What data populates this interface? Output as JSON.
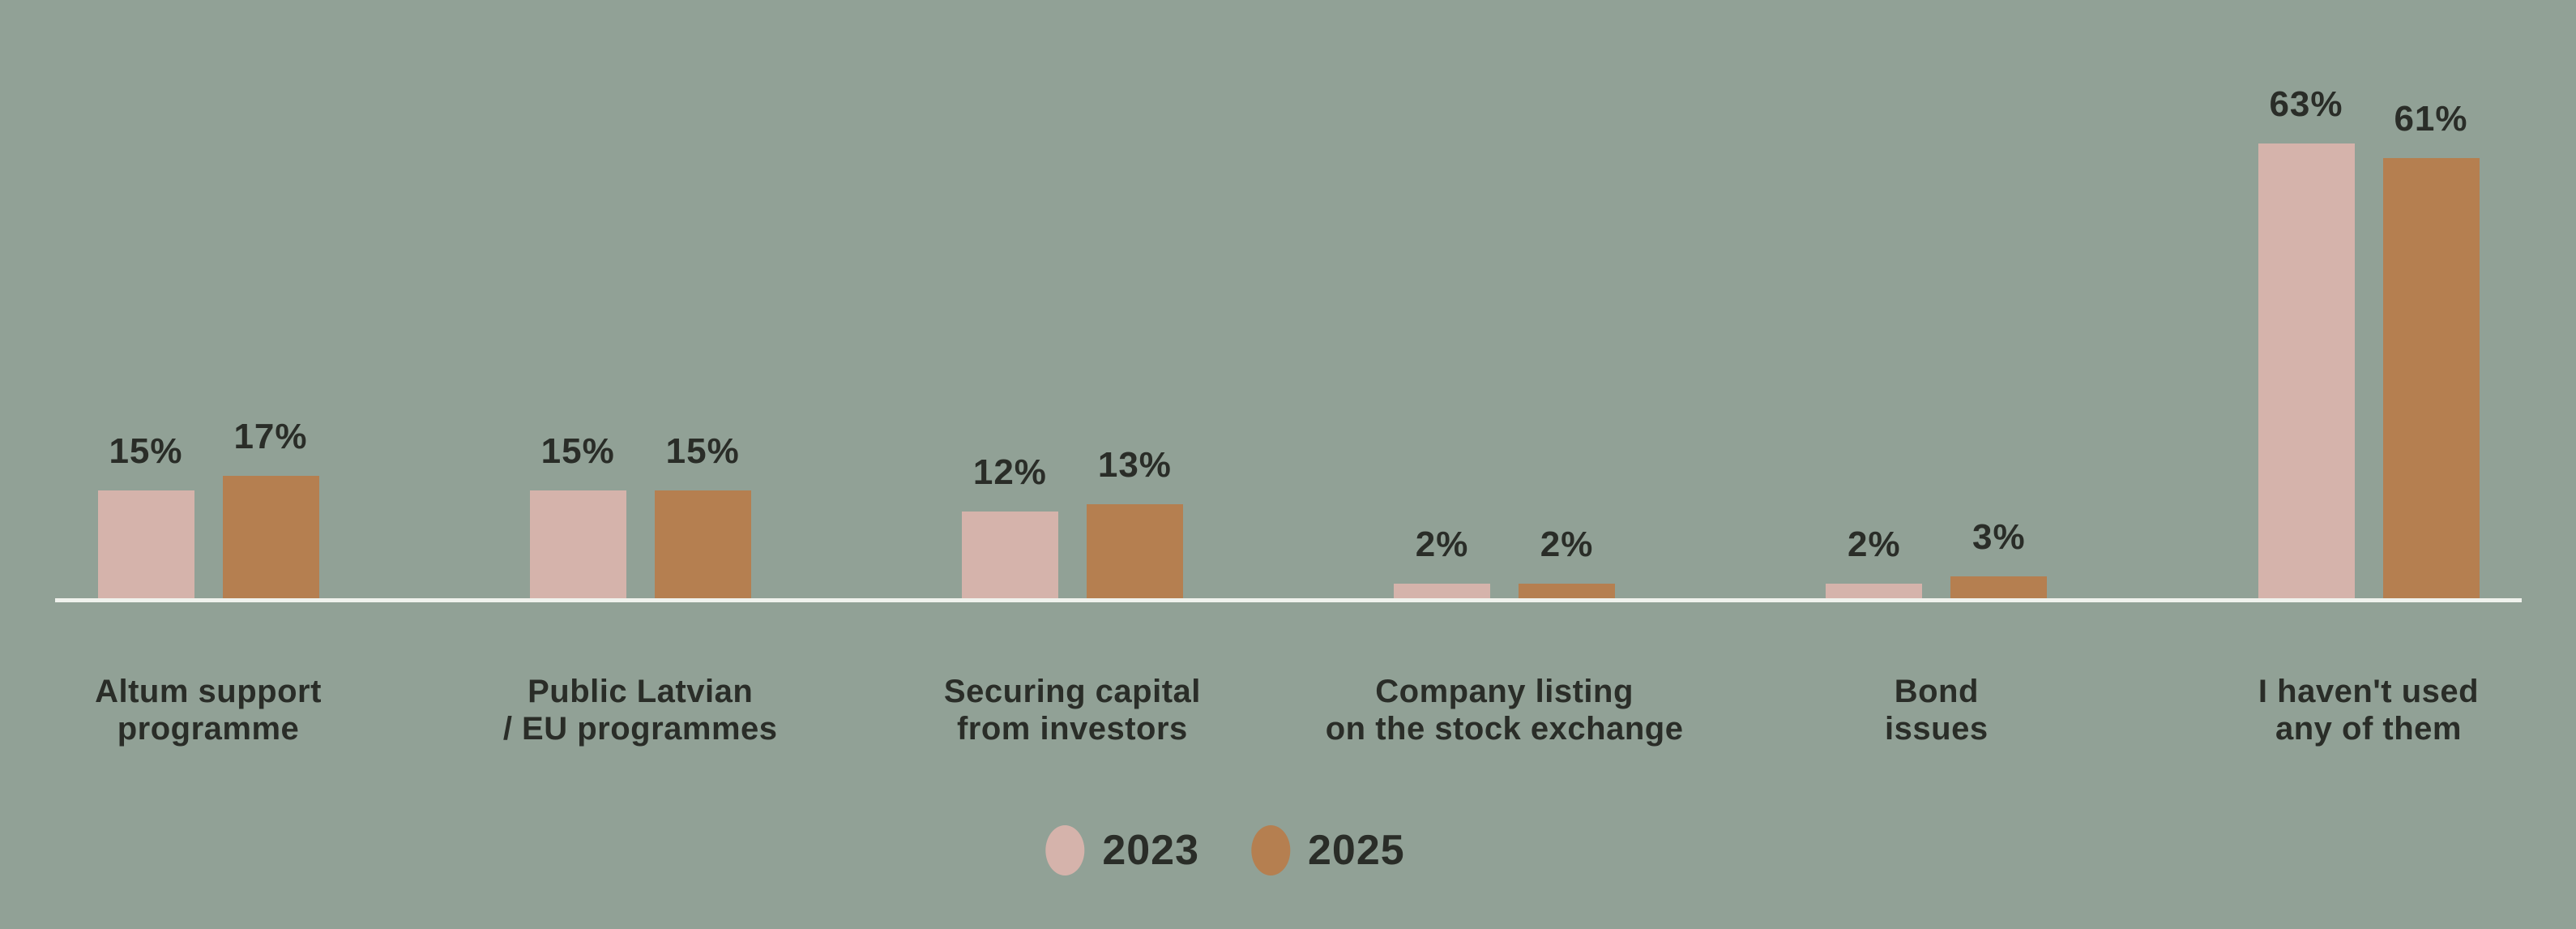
{
  "background_color": "#91a196",
  "text_color": "#2a2d28",
  "axis_line_color": "#f0f2ed",
  "chart_data": {
    "type": "bar",
    "categories": [
      "Altum support\nprogramme",
      "Public Latvian\n/ EU programmes",
      "Securing capital\nfrom investors",
      "Company listing\non the stock exchange",
      "Bond\nissues",
      "I haven't used\nany of them"
    ],
    "series": [
      {
        "name": "2023",
        "color": "#d5b3ab",
        "values": [
          15,
          15,
          12,
          2,
          2,
          63
        ]
      },
      {
        "name": "2025",
        "color": "#b57f50",
        "values": [
          17,
          15,
          13,
          2,
          3,
          61
        ]
      }
    ],
    "value_label_suffix": "%",
    "ylim": [
      0,
      70
    ],
    "grid": false,
    "legend_position": "bottom"
  }
}
